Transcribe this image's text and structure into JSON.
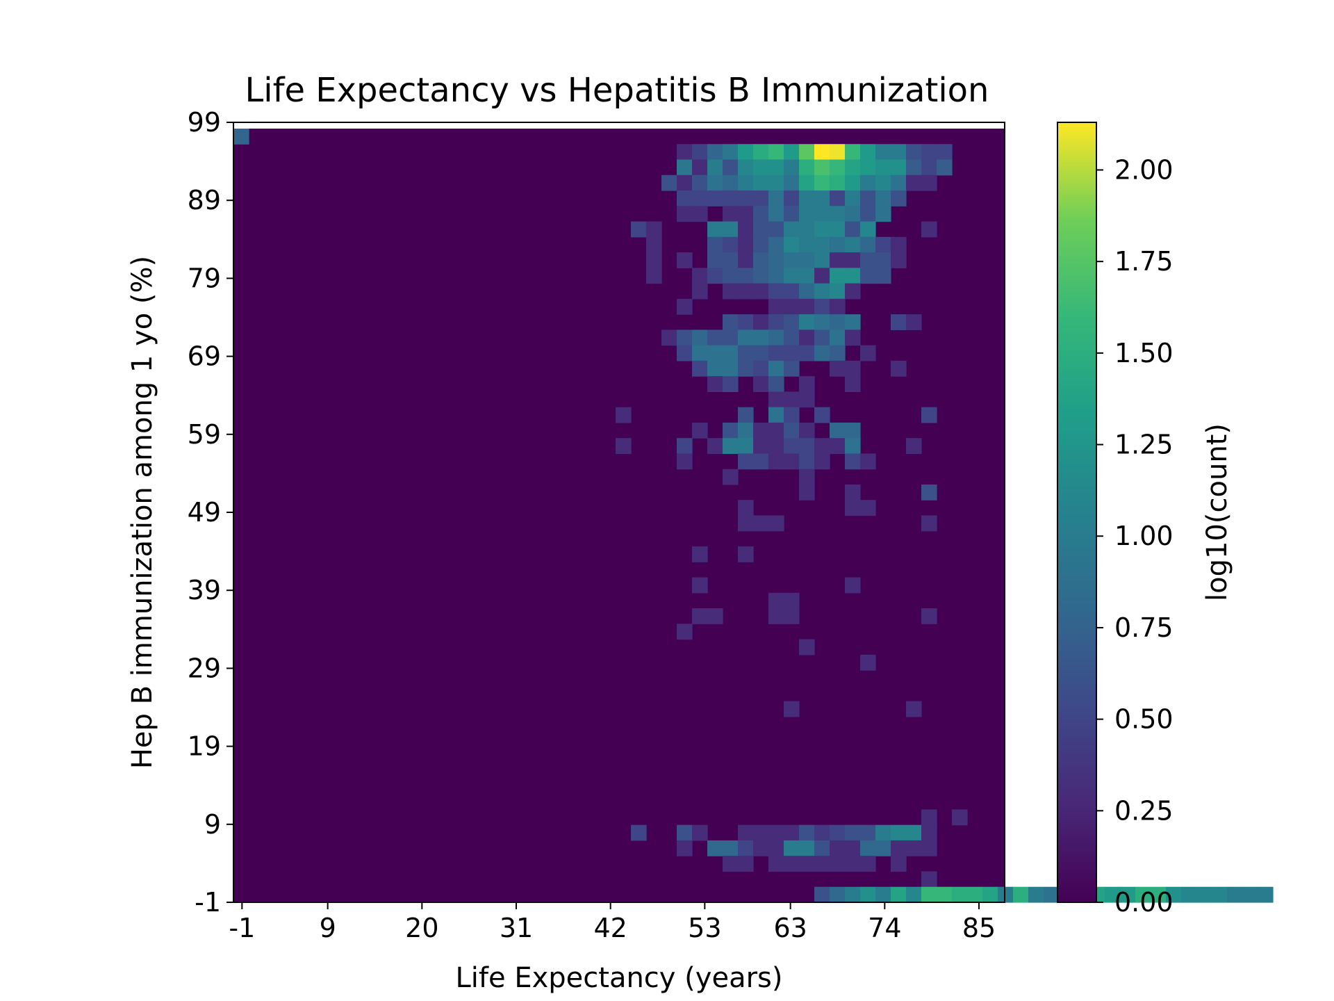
{
  "chart_data": {
    "type": "heatmap",
    "title": "Life Expectancy vs Hepatitis B Immunization",
    "xlabel": "Life Expectancy (years)",
    "ylabel": "Hep B immunization among 1 yo (%)",
    "xlim": [
      -2,
      88
    ],
    "ylim": [
      -1,
      99
    ],
    "x_ticks": [
      "-1",
      "9",
      "20",
      "31",
      "42",
      "53",
      "63",
      "74",
      "85"
    ],
    "y_ticks": [
      "-1",
      "9",
      "19",
      "29",
      "39",
      "49",
      "59",
      "69",
      "79",
      "89",
      "99"
    ],
    "bins": {
      "x_count": 50,
      "y_count": 50
    },
    "colorbar": {
      "label": "log10(count)",
      "range": [
        0,
        2.13
      ],
      "ticks": [
        "0.00",
        "0.25",
        "0.50",
        "0.75",
        "1.00",
        "1.25",
        "1.50",
        "1.75",
        "2.00"
      ],
      "colormap": "viridis"
    },
    "cells": [
      [
        0,
        49,
        0.78
      ],
      [
        29,
        48,
        0.3
      ],
      [
        30,
        48,
        0.48
      ],
      [
        31,
        48,
        0.78
      ],
      [
        32,
        48,
        0.95
      ],
      [
        33,
        48,
        1.3
      ],
      [
        34,
        48,
        1.48
      ],
      [
        35,
        48,
        1.6
      ],
      [
        36,
        48,
        1.3
      ],
      [
        37,
        48,
        1.78
      ],
      [
        38,
        48,
        2.13
      ],
      [
        39,
        48,
        2.1
      ],
      [
        40,
        48,
        1.6
      ],
      [
        41,
        48,
        1.3
      ],
      [
        42,
        48,
        1.0
      ],
      [
        43,
        48,
        1.0
      ],
      [
        44,
        48,
        0.6
      ],
      [
        45,
        48,
        0.5
      ],
      [
        46,
        48,
        0.5
      ],
      [
        29,
        47,
        0.95
      ],
      [
        30,
        47,
        0.3
      ],
      [
        31,
        47,
        1.0
      ],
      [
        32,
        47,
        0.6
      ],
      [
        33,
        47,
        1.1
      ],
      [
        34,
        47,
        1.2
      ],
      [
        35,
        47,
        1.2
      ],
      [
        36,
        47,
        1.0
      ],
      [
        37,
        47,
        1.5
      ],
      [
        38,
        47,
        1.7
      ],
      [
        39,
        47,
        1.6
      ],
      [
        40,
        47,
        1.4
      ],
      [
        41,
        47,
        1.3
      ],
      [
        42,
        47,
        1.2
      ],
      [
        43,
        47,
        1.2
      ],
      [
        44,
        47,
        0.7
      ],
      [
        45,
        47,
        0.5
      ],
      [
        46,
        47,
        0.7
      ],
      [
        28,
        46,
        0.6
      ],
      [
        29,
        46,
        0.3
      ],
      [
        30,
        46,
        0.6
      ],
      [
        31,
        46,
        0.9
      ],
      [
        32,
        46,
        0.8
      ],
      [
        33,
        46,
        1.0
      ],
      [
        34,
        46,
        1.1
      ],
      [
        35,
        46,
        1.1
      ],
      [
        36,
        46,
        0.9
      ],
      [
        37,
        46,
        1.4
      ],
      [
        38,
        46,
        1.6
      ],
      [
        39,
        46,
        1.5
      ],
      [
        40,
        46,
        1.3
      ],
      [
        41,
        46,
        1.0
      ],
      [
        42,
        46,
        1.1
      ],
      [
        43,
        46,
        0.9
      ],
      [
        44,
        46,
        0.3
      ],
      [
        45,
        46,
        0.3
      ],
      [
        29,
        45,
        0.5
      ],
      [
        30,
        45,
        0.5
      ],
      [
        31,
        45,
        0.5
      ],
      [
        32,
        45,
        0.5
      ],
      [
        33,
        45,
        0.5
      ],
      [
        34,
        45,
        0.5
      ],
      [
        35,
        45,
        0.9
      ],
      [
        36,
        45,
        0.5
      ],
      [
        37,
        45,
        1.0
      ],
      [
        38,
        45,
        1.0
      ],
      [
        39,
        45,
        0.5
      ],
      [
        40,
        45,
        1.0
      ],
      [
        41,
        45,
        0.6
      ],
      [
        42,
        45,
        0.9
      ],
      [
        43,
        45,
        0.6
      ],
      [
        29,
        44,
        0.3
      ],
      [
        30,
        44,
        0.3
      ],
      [
        32,
        44,
        0.3
      ],
      [
        33,
        44,
        0.3
      ],
      [
        34,
        44,
        0.6
      ],
      [
        35,
        44,
        0.9
      ],
      [
        36,
        44,
        0.6
      ],
      [
        37,
        44,
        1.0
      ],
      [
        38,
        44,
        1.0
      ],
      [
        39,
        44,
        1.0
      ],
      [
        40,
        44,
        0.9
      ],
      [
        41,
        44,
        0.6
      ],
      [
        42,
        44,
        0.9
      ],
      [
        26,
        43,
        0.5
      ],
      [
        27,
        43,
        0.3
      ],
      [
        31,
        43,
        1.0
      ],
      [
        32,
        43,
        1.0
      ],
      [
        33,
        43,
        0.3
      ],
      [
        34,
        43,
        0.6
      ],
      [
        35,
        43,
        0.6
      ],
      [
        36,
        43,
        1.0
      ],
      [
        37,
        43,
        1.0
      ],
      [
        38,
        43,
        1.1
      ],
      [
        39,
        43,
        1.1
      ],
      [
        40,
        43,
        0.6
      ],
      [
        41,
        43,
        1.1
      ],
      [
        45,
        43,
        0.3
      ],
      [
        27,
        42,
        0.3
      ],
      [
        31,
        42,
        0.6
      ],
      [
        32,
        42,
        0.5
      ],
      [
        33,
        42,
        0.3
      ],
      [
        34,
        42,
        0.6
      ],
      [
        35,
        42,
        0.8
      ],
      [
        36,
        42,
        1.1
      ],
      [
        37,
        42,
        1.0
      ],
      [
        38,
        42,
        1.0
      ],
      [
        39,
        42,
        0.9
      ],
      [
        40,
        42,
        1.0
      ],
      [
        41,
        42,
        0.8
      ],
      [
        42,
        42,
        0.5
      ],
      [
        43,
        42,
        0.3
      ],
      [
        27,
        41,
        0.3
      ],
      [
        29,
        41,
        0.3
      ],
      [
        31,
        41,
        0.6
      ],
      [
        32,
        41,
        0.6
      ],
      [
        33,
        41,
        0.3
      ],
      [
        34,
        41,
        0.7
      ],
      [
        35,
        41,
        0.8
      ],
      [
        36,
        41,
        0.9
      ],
      [
        37,
        41,
        0.9
      ],
      [
        38,
        41,
        1.0
      ],
      [
        39,
        41,
        0.3
      ],
      [
        40,
        41,
        0.3
      ],
      [
        41,
        41,
        0.6
      ],
      [
        42,
        41,
        0.6
      ],
      [
        43,
        41,
        0.3
      ],
      [
        27,
        40,
        0.3
      ],
      [
        30,
        40,
        0.3
      ],
      [
        31,
        40,
        0.5
      ],
      [
        32,
        40,
        0.6
      ],
      [
        33,
        40,
        0.6
      ],
      [
        34,
        40,
        0.7
      ],
      [
        35,
        40,
        0.8
      ],
      [
        36,
        40,
        1.0
      ],
      [
        37,
        40,
        1.0
      ],
      [
        38,
        40,
        0.3
      ],
      [
        39,
        40,
        1.2
      ],
      [
        40,
        40,
        1.2
      ],
      [
        41,
        40,
        0.6
      ],
      [
        42,
        40,
        0.6
      ],
      [
        30,
        39,
        0.3
      ],
      [
        32,
        39,
        0.3
      ],
      [
        33,
        39,
        0.3
      ],
      [
        34,
        39,
        0.3
      ],
      [
        35,
        39,
        0.5
      ],
      [
        36,
        39,
        0.5
      ],
      [
        37,
        39,
        0.8
      ],
      [
        38,
        39,
        1.0
      ],
      [
        39,
        39,
        1.1
      ],
      [
        40,
        39,
        0.3
      ],
      [
        29,
        38,
        0.3
      ],
      [
        35,
        38,
        0.3
      ],
      [
        36,
        38,
        0.3
      ],
      [
        37,
        38,
        0.3
      ],
      [
        38,
        38,
        0.5
      ],
      [
        39,
        38,
        0.3
      ],
      [
        32,
        37,
        0.6
      ],
      [
        33,
        37,
        0.5
      ],
      [
        34,
        37,
        0.3
      ],
      [
        35,
        37,
        0.5
      ],
      [
        36,
        37,
        0.6
      ],
      [
        37,
        37,
        1.0
      ],
      [
        38,
        37,
        0.9
      ],
      [
        39,
        37,
        0.8
      ],
      [
        40,
        37,
        0.9
      ],
      [
        43,
        37,
        0.5
      ],
      [
        44,
        37,
        0.3
      ],
      [
        28,
        36,
        0.3
      ],
      [
        29,
        36,
        0.6
      ],
      [
        30,
        36,
        0.8
      ],
      [
        31,
        36,
        0.6
      ],
      [
        32,
        36,
        0.6
      ],
      [
        33,
        36,
        0.9
      ],
      [
        34,
        36,
        0.9
      ],
      [
        35,
        36,
        0.8
      ],
      [
        36,
        36,
        0.6
      ],
      [
        37,
        36,
        0.3
      ],
      [
        38,
        36,
        0.6
      ],
      [
        39,
        36,
        0.9
      ],
      [
        40,
        36,
        0.3
      ],
      [
        29,
        35,
        0.5
      ],
      [
        30,
        35,
        0.9
      ],
      [
        31,
        35,
        0.9
      ],
      [
        32,
        35,
        0.9
      ],
      [
        33,
        35,
        0.6
      ],
      [
        34,
        35,
        0.6
      ],
      [
        35,
        35,
        0.5
      ],
      [
        36,
        35,
        0.5
      ],
      [
        37,
        35,
        0.5
      ],
      [
        38,
        35,
        0.8
      ],
      [
        39,
        35,
        0.7
      ],
      [
        41,
        35,
        0.3
      ],
      [
        30,
        34,
        0.5
      ],
      [
        31,
        34,
        0.9
      ],
      [
        32,
        34,
        0.9
      ],
      [
        33,
        34,
        0.6
      ],
      [
        34,
        34,
        0.5
      ],
      [
        35,
        34,
        0.9
      ],
      [
        36,
        34,
        0.6
      ],
      [
        39,
        34,
        0.3
      ],
      [
        40,
        34,
        0.3
      ],
      [
        43,
        34,
        0.3
      ],
      [
        31,
        33,
        0.3
      ],
      [
        32,
        33,
        0.5
      ],
      [
        34,
        33,
        0.3
      ],
      [
        35,
        33,
        0.6
      ],
      [
        37,
        33,
        0.3
      ],
      [
        40,
        33,
        0.3
      ],
      [
        35,
        32,
        0.3
      ],
      [
        36,
        32,
        0.3
      ],
      [
        37,
        32,
        0.3
      ],
      [
        25,
        31,
        0.3
      ],
      [
        33,
        31,
        0.6
      ],
      [
        35,
        31,
        0.9
      ],
      [
        36,
        31,
        0.5
      ],
      [
        38,
        31,
        0.5
      ],
      [
        45,
        31,
        0.5
      ],
      [
        30,
        30,
        0.3
      ],
      [
        32,
        30,
        0.6
      ],
      [
        33,
        30,
        0.9
      ],
      [
        34,
        30,
        0.3
      ],
      [
        35,
        30,
        0.3
      ],
      [
        36,
        30,
        0.6
      ],
      [
        37,
        30,
        0.3
      ],
      [
        39,
        30,
        0.8
      ],
      [
        40,
        30,
        0.8
      ],
      [
        25,
        29,
        0.3
      ],
      [
        29,
        29,
        0.5
      ],
      [
        31,
        29,
        0.3
      ],
      [
        32,
        29,
        1.0
      ],
      [
        33,
        29,
        1.0
      ],
      [
        34,
        29,
        0.3
      ],
      [
        35,
        29,
        0.3
      ],
      [
        36,
        29,
        0.5
      ],
      [
        37,
        29,
        0.5
      ],
      [
        38,
        29,
        0.3
      ],
      [
        39,
        29,
        0.3
      ],
      [
        40,
        29,
        0.9
      ],
      [
        44,
        29,
        0.3
      ],
      [
        29,
        28,
        0.3
      ],
      [
        33,
        28,
        0.5
      ],
      [
        34,
        28,
        0.5
      ],
      [
        35,
        28,
        0.3
      ],
      [
        36,
        28,
        0.3
      ],
      [
        37,
        28,
        0.5
      ],
      [
        38,
        28,
        0.3
      ],
      [
        40,
        28,
        0.5
      ],
      [
        41,
        28,
        0.3
      ],
      [
        32,
        27,
        0.3
      ],
      [
        37,
        27,
        0.3
      ],
      [
        37,
        26,
        0.3
      ],
      [
        40,
        26,
        0.3
      ],
      [
        45,
        26,
        0.6
      ],
      [
        33,
        25,
        0.3
      ],
      [
        40,
        25,
        0.3
      ],
      [
        41,
        25,
        0.3
      ],
      [
        33,
        24,
        0.3
      ],
      [
        34,
        24,
        0.3
      ],
      [
        35,
        24,
        0.3
      ],
      [
        45,
        24,
        0.3
      ],
      [
        30,
        22,
        0.3
      ],
      [
        33,
        22,
        0.3
      ],
      [
        30,
        20,
        0.3
      ],
      [
        40,
        20,
        0.3
      ],
      [
        35,
        19,
        0.3
      ],
      [
        36,
        19,
        0.3
      ],
      [
        30,
        18,
        0.3
      ],
      [
        31,
        18,
        0.3
      ],
      [
        35,
        18,
        0.3
      ],
      [
        36,
        18,
        0.3
      ],
      [
        45,
        18,
        0.3
      ],
      [
        29,
        17,
        0.3
      ],
      [
        37,
        16,
        0.3
      ],
      [
        41,
        15,
        0.3
      ],
      [
        36,
        12,
        0.3
      ],
      [
        44,
        12,
        0.3
      ],
      [
        45,
        5,
        0.3
      ],
      [
        47,
        5,
        0.3
      ],
      [
        26,
        4,
        0.5
      ],
      [
        29,
        4,
        0.6
      ],
      [
        30,
        4,
        0.3
      ],
      [
        33,
        4,
        0.3
      ],
      [
        34,
        4,
        0.3
      ],
      [
        35,
        4,
        0.3
      ],
      [
        36,
        4,
        0.3
      ],
      [
        37,
        4,
        0.6
      ],
      [
        38,
        4,
        0.4
      ],
      [
        39,
        4,
        0.5
      ],
      [
        40,
        4,
        0.6
      ],
      [
        41,
        4,
        0.6
      ],
      [
        42,
        4,
        1.0
      ],
      [
        43,
        4,
        1.1
      ],
      [
        44,
        4,
        1.1
      ],
      [
        45,
        4,
        0.3
      ],
      [
        29,
        3,
        0.3
      ],
      [
        31,
        3,
        0.8
      ],
      [
        32,
        3,
        0.8
      ],
      [
        33,
        3,
        0.5
      ],
      [
        34,
        3,
        0.3
      ],
      [
        35,
        3,
        0.3
      ],
      [
        36,
        3,
        1.0
      ],
      [
        37,
        3,
        1.0
      ],
      [
        38,
        3,
        0.6
      ],
      [
        39,
        3,
        0.3
      ],
      [
        40,
        3,
        0.3
      ],
      [
        41,
        3,
        0.8
      ],
      [
        42,
        3,
        0.8
      ],
      [
        43,
        3,
        0.3
      ],
      [
        44,
        3,
        0.3
      ],
      [
        45,
        3,
        0.3
      ],
      [
        32,
        2,
        0.3
      ],
      [
        33,
        2,
        0.3
      ],
      [
        35,
        2,
        0.3
      ],
      [
        36,
        2,
        0.3
      ],
      [
        37,
        2,
        0.3
      ],
      [
        38,
        2,
        0.3
      ],
      [
        39,
        2,
        0.3
      ],
      [
        40,
        2,
        0.3
      ],
      [
        41,
        2,
        0.3
      ],
      [
        43,
        2,
        0.3
      ],
      [
        45,
        1,
        0.3
      ],
      [
        38,
        0,
        0.6
      ],
      [
        39,
        0,
        0.8
      ],
      [
        40,
        0,
        1.0
      ],
      [
        41,
        0,
        1.2
      ],
      [
        42,
        0,
        1.0
      ],
      [
        43,
        0,
        1.4
      ],
      [
        44,
        0,
        1.1
      ],
      [
        45,
        0,
        1.6
      ],
      [
        46,
        0,
        1.6
      ],
      [
        47,
        0,
        1.5
      ],
      [
        48,
        0,
        1.5
      ],
      [
        49,
        0,
        1.4
      ],
      [
        50,
        0,
        1.0
      ],
      [
        51,
        0,
        1.5
      ],
      [
        52,
        0,
        1.0
      ],
      [
        53,
        0,
        0.9
      ],
      [
        54,
        0,
        1.0
      ],
      [
        55,
        0,
        1.3
      ],
      [
        56,
        0,
        1.4
      ],
      [
        57,
        0,
        1.3
      ],
      [
        58,
        0,
        1.3
      ],
      [
        59,
        0,
        1.5
      ],
      [
        60,
        0,
        1.5
      ],
      [
        61,
        0,
        1.2
      ],
      [
        62,
        0,
        1.1
      ],
      [
        63,
        0,
        1.1
      ],
      [
        64,
        0,
        1.1
      ],
      [
        65,
        0,
        1.0
      ],
      [
        66,
        0,
        1.0
      ],
      [
        67,
        0,
        1.0
      ]
    ]
  }
}
